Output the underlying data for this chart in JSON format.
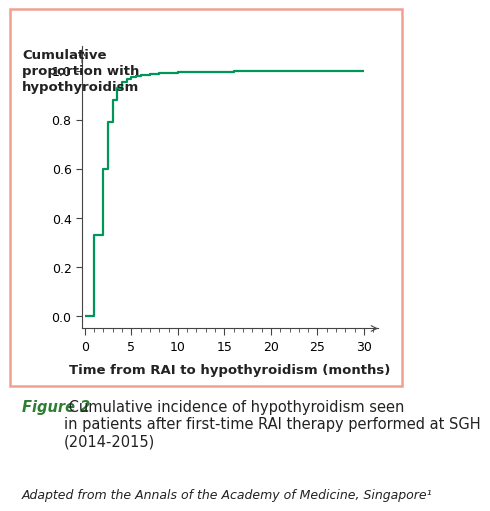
{
  "ylabel_title": "Cumulative\nproportion with\nhypothyroidism",
  "xlabel": "Time from RAI to hypothyroidism (months)",
  "line_color": "#00965a",
  "background_color": "#ffffff",
  "border_color": "#f0a090",
  "xlim": [
    -0.3,
    31.5
  ],
  "ylim": [
    -0.05,
    1.1
  ],
  "xticks": [
    0,
    5,
    10,
    15,
    20,
    25,
    30
  ],
  "yticks": [
    0.0,
    0.2,
    0.4,
    0.6,
    0.8,
    1.0
  ],
  "step_x": [
    0,
    1,
    1,
    2,
    2,
    2.5,
    2.5,
    3,
    3,
    3.5,
    3.5,
    4,
    4,
    4.5,
    4.5,
    5,
    5,
    5.5,
    5.5,
    6,
    6,
    6.5,
    6.5,
    7,
    7,
    8,
    8,
    9,
    9,
    10,
    10,
    12,
    12,
    14,
    14,
    16,
    16,
    18,
    18,
    20,
    20,
    22,
    22,
    24,
    24,
    28,
    28,
    30,
    30
  ],
  "step_y": [
    0.0,
    0.0,
    0.33,
    0.33,
    0.6,
    0.6,
    0.79,
    0.79,
    0.88,
    0.88,
    0.93,
    0.93,
    0.955,
    0.955,
    0.965,
    0.965,
    0.972,
    0.972,
    0.977,
    0.977,
    0.981,
    0.981,
    0.984,
    0.984,
    0.987,
    0.987,
    0.989,
    0.989,
    0.991,
    0.991,
    0.993,
    0.993,
    0.995,
    0.995,
    0.996,
    0.996,
    0.997,
    0.997,
    0.998,
    0.998,
    0.999,
    0.999,
    0.9993,
    0.9993,
    0.9995,
    0.9995,
    1.0,
    1.0,
    1.0
  ],
  "figure_caption_bold": "Figure 2",
  "figure_caption_normal": " Cumulative incidence of hypothyroidism seen\nin patients after first-time RAI therapy performed at SGH\n(2014-2015)",
  "figure_footnote": "Adapted from the Annals of the Academy of Medicine, Singapore¹",
  "caption_green_color": "#2e7d32",
  "caption_fontsize": 10.5,
  "footnote_fontsize": 9,
  "tick_fontsize": 9,
  "xlabel_fontsize": 9.5
}
